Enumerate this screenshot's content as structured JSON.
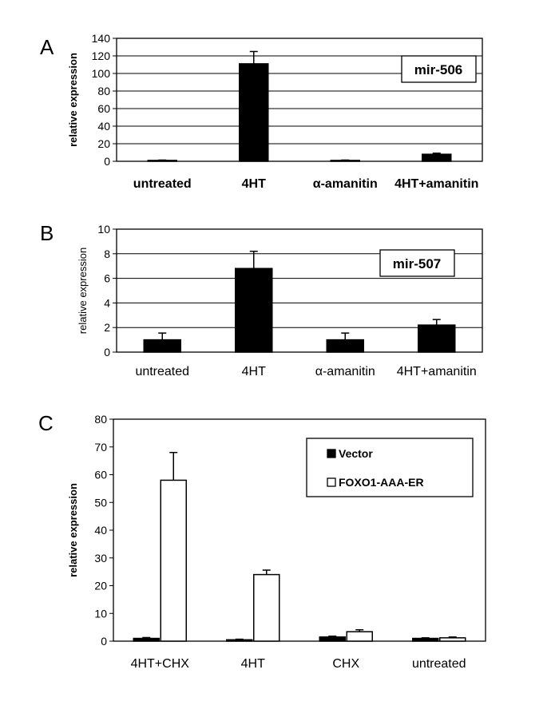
{
  "chart_data": [
    {
      "type": "bar",
      "panel": "A",
      "ylabel": "relative expression",
      "label_box": "mir-506",
      "ylim": [
        0,
        140
      ],
      "yticks": [
        0,
        20,
        40,
        60,
        80,
        100,
        120,
        140
      ],
      "grid": true,
      "categories": [
        "untreated",
        "4HT",
        "α-amanitin",
        "4HT+amanitin"
      ],
      "series": [
        {
          "values": [
            1,
            111,
            1,
            8
          ],
          "errors": [
            0.4,
            14,
            0.4,
            1.2
          ],
          "color": "#000000"
        }
      ]
    },
    {
      "type": "bar",
      "panel": "B",
      "ylabel": "relative expression",
      "label_box": "mir-507",
      "ylim": [
        0,
        10
      ],
      "yticks": [
        0,
        2,
        4,
        6,
        8,
        10
      ],
      "grid": true,
      "categories": [
        "untreated",
        "4HT",
        "α-amanitin",
        "4HT+amanitin"
      ],
      "series": [
        {
          "values": [
            1,
            6.8,
            1,
            2.2
          ],
          "errors": [
            0.55,
            1.4,
            0.55,
            0.45
          ],
          "color": "#000000"
        }
      ]
    },
    {
      "type": "bar",
      "panel": "C",
      "ylabel": "relative expression",
      "ylim": [
        0,
        80
      ],
      "yticks": [
        0,
        10,
        20,
        30,
        40,
        50,
        60,
        70,
        80
      ],
      "grid": false,
      "legend_position": "top-right",
      "categories": [
        "4HT+CHX",
        "4HT",
        "CHX",
        "untreated"
      ],
      "series": [
        {
          "name": "Vector",
          "values": [
            1,
            0.5,
            1.5,
            1
          ],
          "errors": [
            0.3,
            0.2,
            0.3,
            0.2
          ],
          "color": "#000000"
        },
        {
          "name": "FOXO1-AAA-ER",
          "values": [
            58,
            24,
            3.4,
            1.2
          ],
          "errors": [
            10,
            1.6,
            0.7,
            0.3
          ],
          "color": "#ffffff"
        }
      ]
    }
  ]
}
